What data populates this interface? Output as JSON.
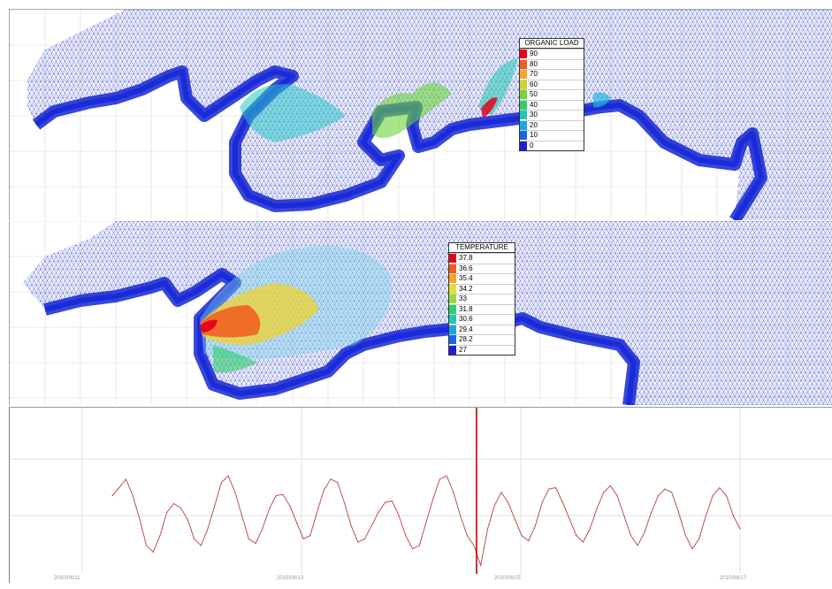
{
  "organic_load_legend": {
    "title": "ORGANIC LOAD",
    "entries": [
      {
        "label": "90",
        "color": "#e8001c"
      },
      {
        "label": "80",
        "color": "#f25a1e"
      },
      {
        "label": "70",
        "color": "#f5a623"
      },
      {
        "label": "60",
        "color": "#c8d62b"
      },
      {
        "label": "50",
        "color": "#7ad13a"
      },
      {
        "label": "40",
        "color": "#2fcf6b"
      },
      {
        "label": "30",
        "color": "#21c7b6"
      },
      {
        "label": "20",
        "color": "#18a7e6"
      },
      {
        "label": "10",
        "color": "#1a66e8"
      },
      {
        "label": "0",
        "color": "#1f1fd6"
      }
    ]
  },
  "temperature_legend": {
    "title": "TEMPERATURE",
    "entries": [
      {
        "label": "37.8",
        "color": "#e8001c"
      },
      {
        "label": "36.6",
        "color": "#f25a1e"
      },
      {
        "label": "35.4",
        "color": "#f5a623"
      },
      {
        "label": "34.2",
        "color": "#e3e32b"
      },
      {
        "label": "33",
        "color": "#9ad93a"
      },
      {
        "label": "31.8",
        "color": "#2fcf6b"
      },
      {
        "label": "30.6",
        "color": "#21c7b6"
      },
      {
        "label": "29.4",
        "color": "#18a7e6"
      },
      {
        "label": "28.2",
        "color": "#1a66e8"
      },
      {
        "label": "27",
        "color": "#1f1fd6"
      }
    ]
  },
  "timeseries": {
    "date_labels": [
      "2010/06/11",
      "2010/06/13",
      "2010/06/15",
      "2010/06/17"
    ],
    "line_color": "#c0504d",
    "marker_color": "#c00000"
  },
  "chart_data": {
    "type": "line",
    "series": [
      {
        "values": [
          0.3,
          0.42,
          0.55,
          0.3,
          -0.05,
          -0.45,
          -0.55,
          -0.3,
          0.05,
          0.18,
          0.12,
          -0.05,
          -0.35,
          -0.45,
          -0.2,
          0.15,
          0.5,
          0.6,
          0.35,
          0.0,
          -0.35,
          -0.42,
          -0.2,
          0.1,
          0.3,
          0.32,
          0.15,
          -0.1,
          -0.35,
          -0.3,
          0.05,
          0.38,
          0.55,
          0.5,
          0.2,
          -0.15,
          -0.4,
          -0.35,
          -0.15,
          0.05,
          0.2,
          0.22,
          0.0,
          -0.3,
          -0.5,
          -0.45,
          -0.1,
          0.25,
          0.55,
          0.6,
          0.35,
          0.0,
          -0.3,
          -0.45,
          -0.75,
          -0.2,
          0.15,
          0.35,
          0.2,
          -0.05,
          -0.3,
          -0.38,
          -0.15,
          0.2,
          0.4,
          0.42,
          0.2,
          -0.05,
          -0.3,
          -0.4,
          -0.2,
          0.1,
          0.35,
          0.45,
          0.3,
          0.0,
          -0.3,
          -0.45,
          -0.25,
          0.05,
          0.3,
          0.4,
          0.35,
          0.05,
          -0.3,
          -0.5,
          -0.35,
          0.0,
          0.3,
          0.42,
          0.3,
          0.0,
          -0.2
        ]
      }
    ],
    "grid": true
  }
}
